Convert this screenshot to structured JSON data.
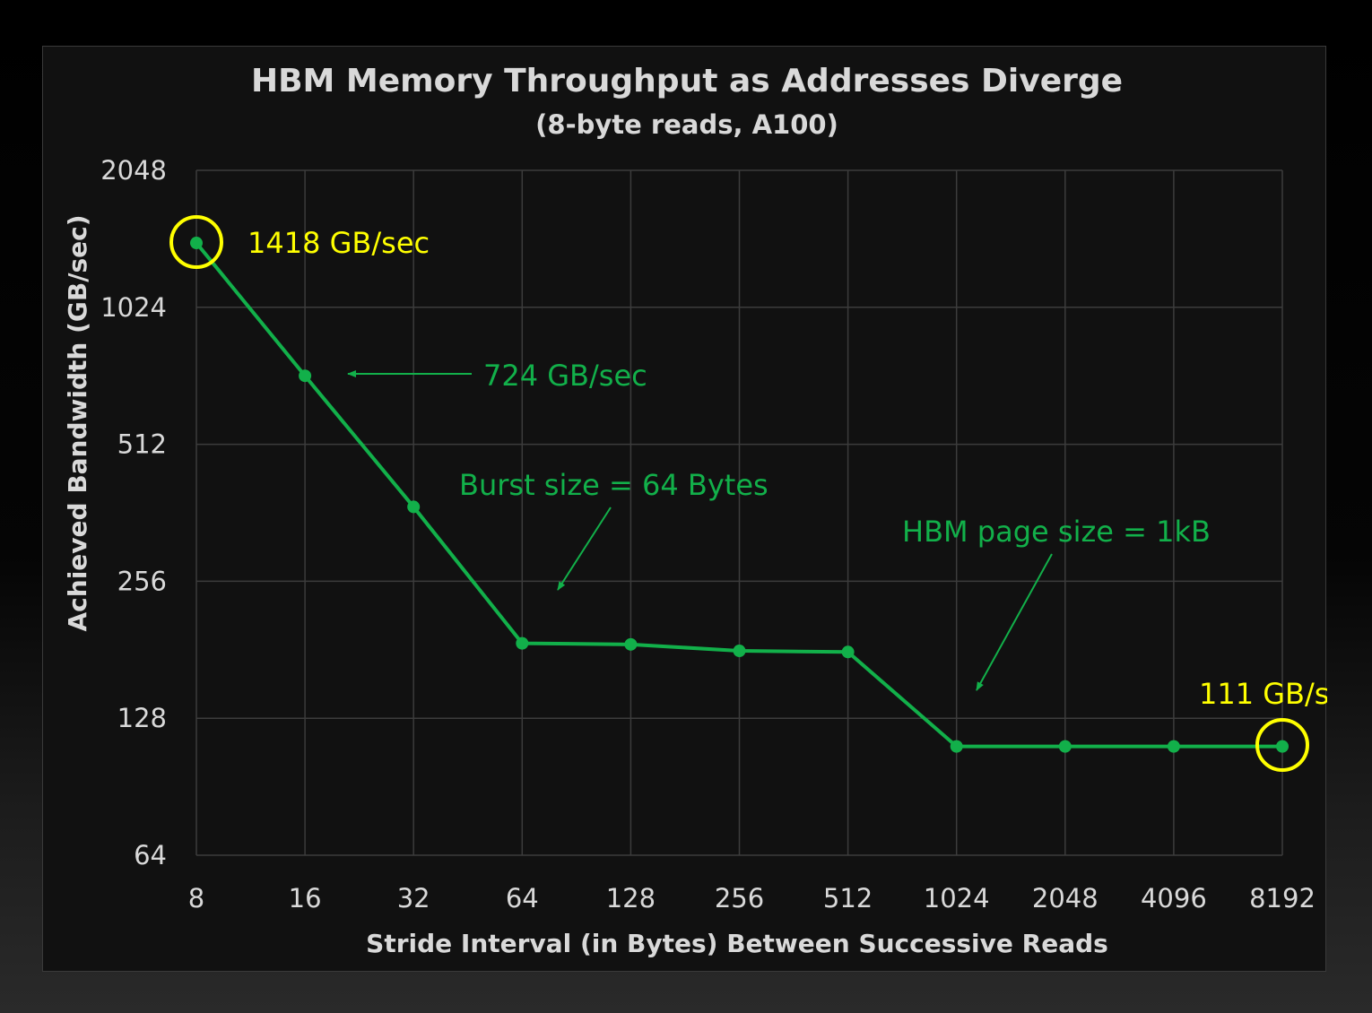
{
  "chart_data": {
    "type": "line",
    "title": "HBM Memory Throughput as Addresses Diverge",
    "subtitle": "(8-byte reads, A100)",
    "xlabel": "Stride Interval (in Bytes) Between Successive Reads",
    "ylabel": "Achieved Bandwidth (GB/sec)",
    "y_scale": "log2",
    "ylim": [
      64,
      2048
    ],
    "grid": true,
    "x_ticks": [
      "8",
      "16",
      "32",
      "64",
      "128",
      "256",
      "512",
      "1024",
      "2048",
      "4096",
      "8192"
    ],
    "y_ticks": [
      "64",
      "128",
      "256",
      "512",
      "1024",
      "2048"
    ],
    "y_tick_values": [
      64,
      128,
      256,
      512,
      1024,
      2048
    ],
    "series": [
      {
        "color": "#12b04a",
        "x": [
          8,
          16,
          32,
          64,
          128,
          256,
          512,
          1024,
          2048,
          4096,
          8192
        ],
        "values": [
          1418,
          724,
          373,
          187,
          186,
          180,
          179,
          111,
          111,
          111,
          111
        ]
      }
    ],
    "annotations": {
      "peak_label": "1418 GB/sec",
      "second_label": "724 GB/sec",
      "burst_label": "Burst size = 64 Bytes",
      "page_label": "HBM page size = 1kB",
      "tail_label": "111 GB/sec"
    },
    "highlight_color": "#ffff00"
  }
}
